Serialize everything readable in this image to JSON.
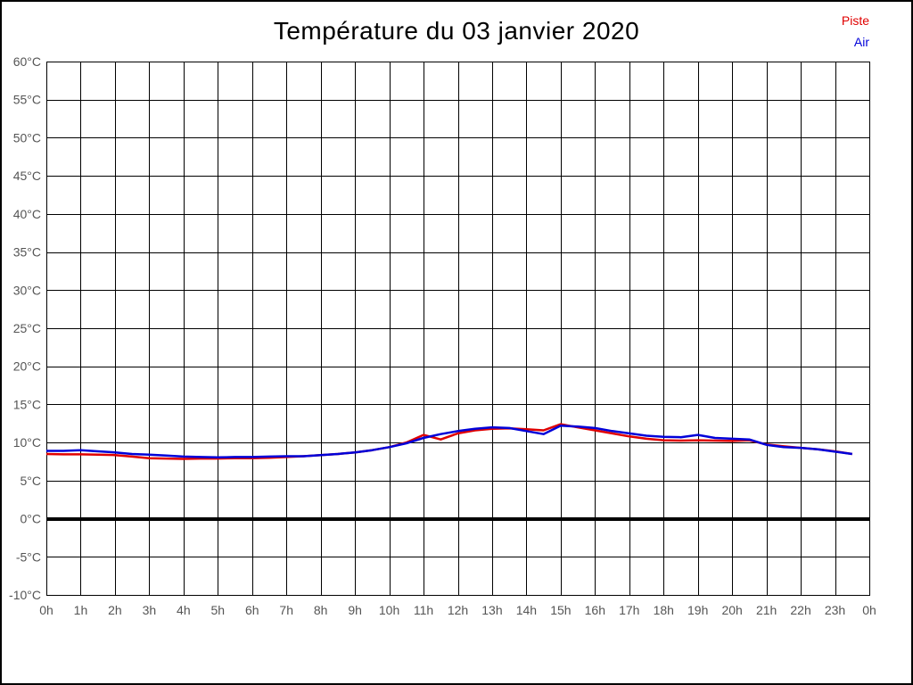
{
  "header": {
    "title": "Température du 03 janvier 2020"
  },
  "chart_data": {
    "type": "line",
    "title": "Température du 03 janvier 2020",
    "xlabel": "",
    "ylabel": "",
    "xlim": [
      0,
      24
    ],
    "ylim": [
      -10,
      60
    ],
    "grid": true,
    "grid_color": "#000000",
    "tick_label_color": "#555555",
    "background_color": "#ffffff",
    "legend_position": "top-right",
    "zero_line": {
      "value": 0,
      "color": "#000000",
      "width": 4
    },
    "y_ticks": [
      {
        "value": 60,
        "label": "60°C"
      },
      {
        "value": 55,
        "label": "55°C"
      },
      {
        "value": 50,
        "label": "50°C"
      },
      {
        "value": 45,
        "label": "45°C"
      },
      {
        "value": 40,
        "label": "40°C"
      },
      {
        "value": 35,
        "label": "35°C"
      },
      {
        "value": 30,
        "label": "30°C"
      },
      {
        "value": 25,
        "label": "25°C"
      },
      {
        "value": 20,
        "label": "20°C"
      },
      {
        "value": 15,
        "label": "15°C"
      },
      {
        "value": 10,
        "label": "10°C"
      },
      {
        "value": 5,
        "label": "5°C"
      },
      {
        "value": 0,
        "label": "0°C"
      },
      {
        "value": -5,
        "label": "-5°C"
      },
      {
        "value": -10,
        "label": "-10°C"
      }
    ],
    "x_ticks": [
      {
        "value": 0,
        "label": "0h"
      },
      {
        "value": 1,
        "label": "1h"
      },
      {
        "value": 2,
        "label": "2h"
      },
      {
        "value": 3,
        "label": "3h"
      },
      {
        "value": 4,
        "label": "4h"
      },
      {
        "value": 5,
        "label": "5h"
      },
      {
        "value": 6,
        "label": "6h"
      },
      {
        "value": 7,
        "label": "7h"
      },
      {
        "value": 8,
        "label": "8h"
      },
      {
        "value": 9,
        "label": "9h"
      },
      {
        "value": 10,
        "label": "10h"
      },
      {
        "value": 11,
        "label": "11h"
      },
      {
        "value": 12,
        "label": "12h"
      },
      {
        "value": 13,
        "label": "13h"
      },
      {
        "value": 14,
        "label": "14h"
      },
      {
        "value": 15,
        "label": "15h"
      },
      {
        "value": 16,
        "label": "16h"
      },
      {
        "value": 17,
        "label": "17h"
      },
      {
        "value": 18,
        "label": "18h"
      },
      {
        "value": 19,
        "label": "19h"
      },
      {
        "value": 20,
        "label": "20h"
      },
      {
        "value": 21,
        "label": "21h"
      },
      {
        "value": 22,
        "label": "22h"
      },
      {
        "value": 23,
        "label": "23h"
      },
      {
        "value": 24,
        "label": "0h"
      }
    ],
    "x": [
      0,
      0.5,
      1,
      1.5,
      2,
      2.5,
      3,
      3.5,
      4,
      4.5,
      5,
      5.5,
      6,
      6.5,
      7,
      7.5,
      8,
      8.5,
      9,
      9.5,
      10,
      10.5,
      11,
      11.5,
      12,
      12.5,
      13,
      13.5,
      14,
      14.5,
      15,
      15.5,
      16,
      16.5,
      17,
      17.5,
      18,
      18.5,
      19,
      19.5,
      20,
      20.5,
      21,
      21.5,
      22,
      22.5,
      23,
      23.5
    ],
    "series": [
      {
        "name": "Piste",
        "color": "#e00000",
        "values": [
          8.5,
          8.45,
          8.45,
          8.4,
          8.35,
          8.15,
          7.95,
          7.9,
          7.85,
          7.9,
          7.9,
          7.95,
          7.95,
          8.0,
          8.1,
          8.2,
          8.35,
          8.5,
          8.7,
          9.0,
          9.4,
          10.0,
          11.0,
          10.4,
          11.2,
          11.6,
          11.8,
          11.85,
          11.75,
          11.6,
          12.4,
          12.0,
          11.6,
          11.2,
          10.8,
          10.5,
          10.3,
          10.25,
          10.3,
          10.25,
          10.2,
          10.3,
          9.75,
          9.5,
          9.3,
          9.1,
          8.85,
          8.5
        ]
      },
      {
        "name": "Air",
        "color": "#0000d9",
        "values": [
          8.9,
          8.9,
          9.0,
          8.85,
          8.7,
          8.5,
          8.4,
          8.3,
          8.15,
          8.1,
          8.05,
          8.1,
          8.1,
          8.15,
          8.2,
          8.2,
          8.35,
          8.5,
          8.7,
          9.0,
          9.4,
          9.9,
          10.6,
          11.1,
          11.5,
          11.8,
          12.0,
          11.9,
          11.5,
          11.1,
          12.2,
          12.1,
          11.9,
          11.5,
          11.2,
          10.9,
          10.75,
          10.7,
          11.0,
          10.6,
          10.5,
          10.4,
          9.7,
          9.4,
          9.3,
          9.1,
          8.8,
          8.5
        ]
      }
    ]
  }
}
